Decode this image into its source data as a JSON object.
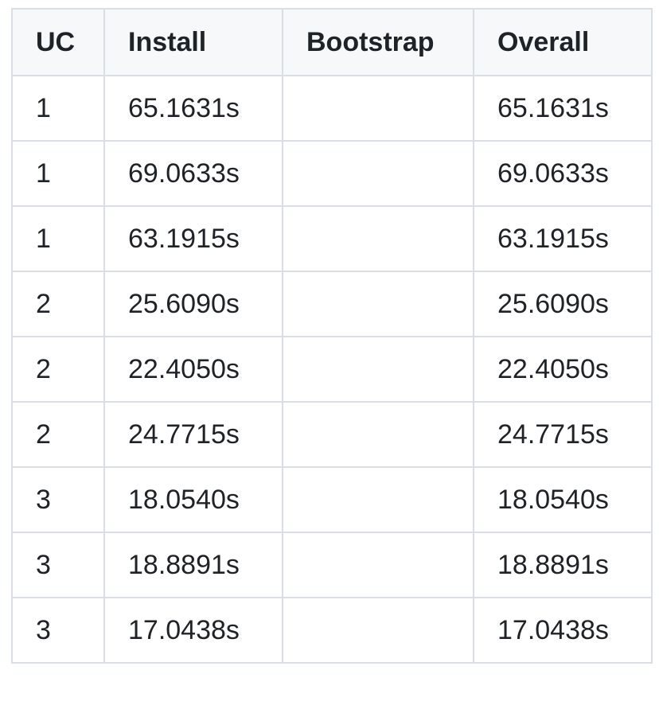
{
  "table": {
    "headers": [
      "UC",
      "Install",
      "Bootstrap",
      "Overall"
    ],
    "rows": [
      [
        "1",
        "65.1631s",
        "",
        "65.1631s"
      ],
      [
        "1",
        "69.0633s",
        "",
        "69.0633s"
      ],
      [
        "1",
        "63.1915s",
        "",
        "63.1915s"
      ],
      [
        "2",
        "25.6090s",
        "",
        "25.6090s"
      ],
      [
        "2",
        "22.4050s",
        "",
        "22.4050s"
      ],
      [
        "2",
        "24.7715s",
        "",
        "24.7715s"
      ],
      [
        "3",
        "18.0540s",
        "",
        "18.0540s"
      ],
      [
        "3",
        "18.8891s",
        "",
        "18.8891s"
      ],
      [
        "3",
        "17.0438s",
        "",
        "17.0438s"
      ]
    ]
  },
  "colors": {
    "header_bg": "#f6f8fa",
    "border": "#d8dee4",
    "text": "#1f2328"
  }
}
